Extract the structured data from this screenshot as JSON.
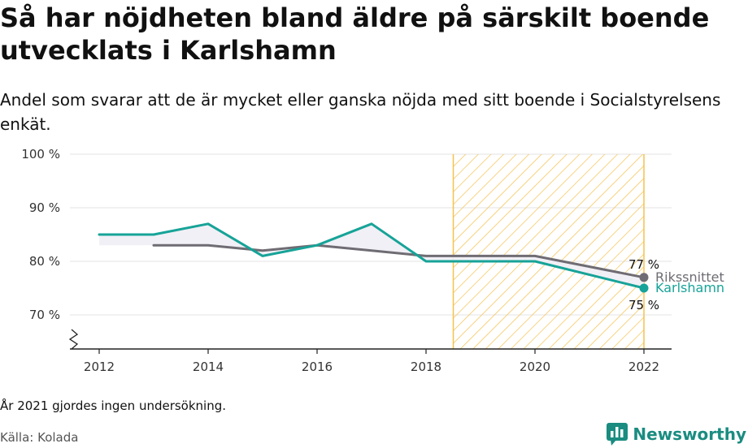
{
  "header": {
    "title": "Så har nöjdheten bland äldre på särskilt boende utvecklats i Karlshamn",
    "subtitle": "Andel som svarar att de är mycket eller ganska nöjda med sitt boende i Socialstyrelsens enkät."
  },
  "footer": {
    "note": "År 2021 gjordes ingen undersökning.",
    "source": "Källa: Kolada",
    "brand": "Newsworthy"
  },
  "colors": {
    "karlshamn": "#17a398",
    "rikssnittet": "#6f6c73",
    "highlight_stripe": "#f5c14d",
    "gap_fill": "#f0eef5",
    "brand": "#1a8c80"
  },
  "icons": {
    "brand_logo": "bar-chart-speech-bubble-icon"
  },
  "chart_data": {
    "type": "line",
    "title": "Så har nöjdheten bland äldre på särskilt boende utvecklats i Karlshamn",
    "subtitle": "Andel som svarar att de är mycket eller ganska nöjda med sitt boende i Socialstyrelsens enkät.",
    "xlabel": "",
    "ylabel": "",
    "x_ticks": [
      2012,
      2014,
      2016,
      2018,
      2020,
      2022
    ],
    "y_ticks": [
      70,
      80,
      90,
      100
    ],
    "y_tick_labels": [
      "70 %",
      "80 %",
      "90 %",
      "100 %"
    ],
    "y_axis_break": true,
    "grid": "horizontal",
    "highlight_range": [
      2018.5,
      2022
    ],
    "series": [
      {
        "name": "Rikssnittet",
        "x": [
          2013,
          2014,
          2015,
          2016,
          2017,
          2018,
          2019,
          2020,
          2022
        ],
        "values": [
          83,
          83,
          82,
          83,
          82,
          81,
          81,
          81,
          77
        ],
        "end_label": "77 %"
      },
      {
        "name": "Karlshamn",
        "x": [
          2012,
          2013,
          2014,
          2015,
          2016,
          2017,
          2018,
          2019,
          2020,
          2022
        ],
        "values": [
          85,
          85,
          87,
          81,
          83,
          87,
          80,
          80,
          80,
          75
        ],
        "end_label": "75 %"
      }
    ]
  }
}
